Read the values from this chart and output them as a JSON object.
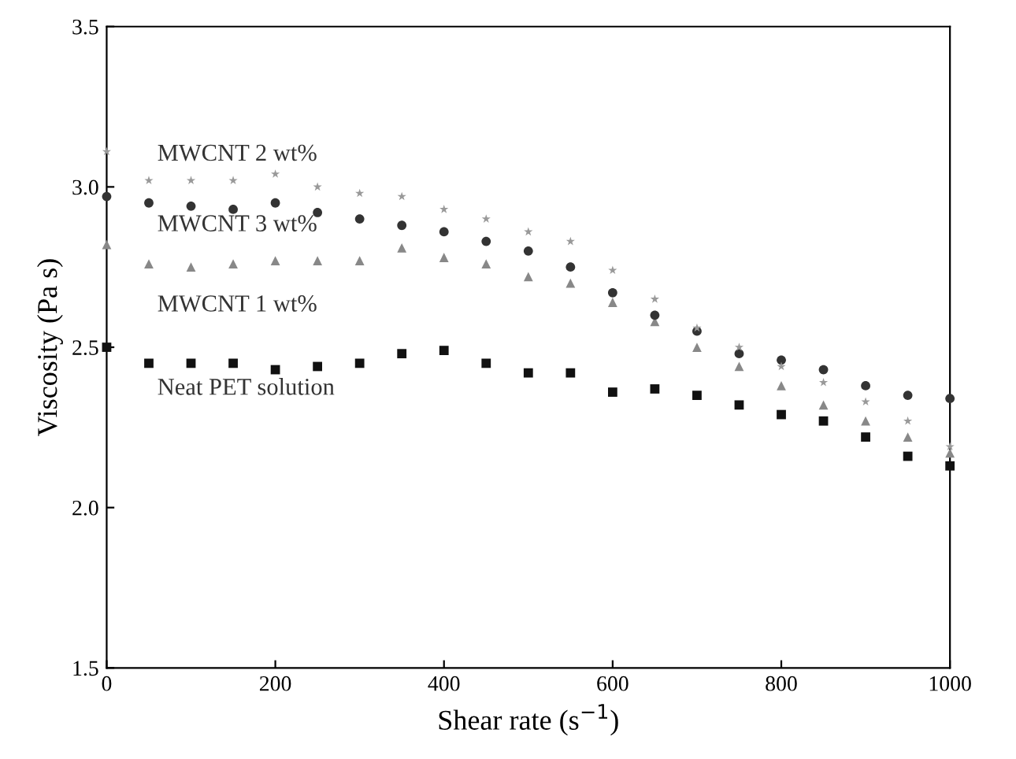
{
  "chart_data": {
    "type": "scatter",
    "xlabel": "Shear rate (s$^{−1}$)",
    "ylabel": "Viscosity (Pa s)",
    "x": [
      0,
      50,
      100,
      150,
      200,
      250,
      300,
      350,
      400,
      450,
      500,
      550,
      600,
      650,
      700,
      750,
      800,
      850,
      900,
      950,
      1000
    ],
    "series": [
      {
        "name": "Neat PET solution",
        "color": "#111111",
        "marker": "square",
        "values": [
          2.5,
          2.45,
          2.45,
          2.45,
          2.43,
          2.44,
          2.45,
          2.48,
          2.49,
          2.45,
          2.42,
          2.42,
          2.36,
          2.37,
          2.35,
          2.32,
          2.29,
          2.27,
          2.22,
          2.16,
          2.13
        ]
      },
      {
        "name": "MWCNT 1 wt%",
        "color": "#888888",
        "marker": "triangle",
        "values": [
          2.82,
          2.76,
          2.75,
          2.76,
          2.77,
          2.77,
          2.77,
          2.81,
          2.78,
          2.76,
          2.72,
          2.7,
          2.64,
          2.58,
          2.5,
          2.44,
          2.38,
          2.32,
          2.27,
          2.22,
          2.17
        ]
      },
      {
        "name": "MWCNT 3 wt%",
        "color": "#333333",
        "marker": "circle",
        "values": [
          2.97,
          2.95,
          2.94,
          2.93,
          2.95,
          2.92,
          2.9,
          2.88,
          2.86,
          2.83,
          2.8,
          2.75,
          2.67,
          2.6,
          2.55,
          2.48,
          2.46,
          2.43,
          2.38,
          2.35,
          2.34
        ]
      },
      {
        "name": "MWCNT 2 wt%",
        "color": "#999999",
        "marker": "star",
        "values": [
          3.11,
          3.02,
          3.02,
          3.02,
          3.04,
          3.0,
          2.98,
          2.97,
          2.93,
          2.9,
          2.86,
          2.83,
          2.74,
          2.65,
          2.56,
          2.5,
          2.44,
          2.39,
          2.33,
          2.27,
          2.19
        ]
      }
    ],
    "xlim": [
      0,
      1000
    ],
    "xticks": [
      0,
      200,
      400,
      600,
      800,
      1000
    ],
    "ylim": [
      1.5,
      3.5
    ],
    "yticks": [
      1.5,
      {
        "value": 2,
        "label": "2.0"
      },
      2.5,
      {
        "value": 3,
        "label": "3.0"
      },
      3.5
    ],
    "grid": false,
    "legend": false
  }
}
